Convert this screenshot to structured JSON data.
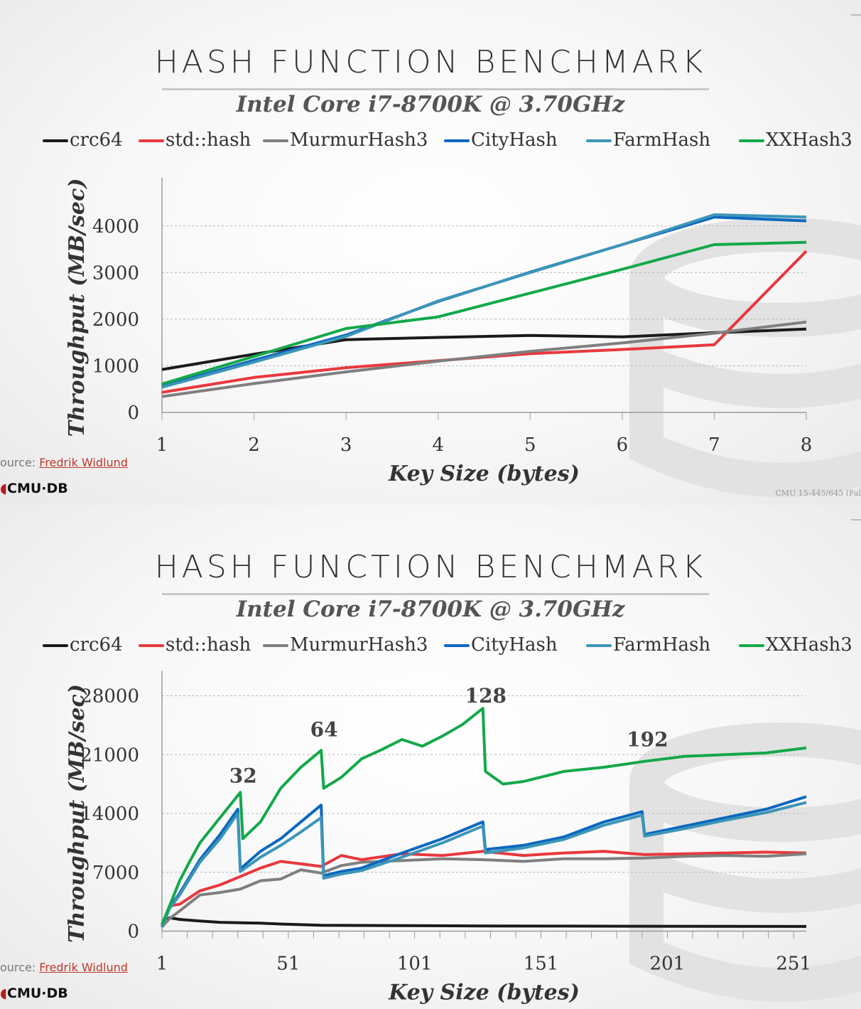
{
  "slides": [
    {
      "title": "HASH FUNCTION BENCHMARK",
      "subtitle": "Intel Core i7-8700K @ 3.70GHz",
      "source_label": "ource:",
      "source_link": "Fredrik Widlund",
      "logo": "CMU·DB",
      "course": "CMU 15-445/645 (Fal"
    },
    {
      "title": "HASH FUNCTION BENCHMARK",
      "subtitle": "Intel Core i7-8700K @ 3.70GHz",
      "source_label": "ource:",
      "source_link": "Fredrik Widlund",
      "logo": "CMU·DB"
    }
  ],
  "legend": [
    {
      "name": "crc64",
      "color": "#1a1a1a"
    },
    {
      "name": "std::hash",
      "color": "#e8383d"
    },
    {
      "name": "MurmurHash3",
      "color": "#7f7f7f"
    },
    {
      "name": "CityHash",
      "color": "#0b67c0"
    },
    {
      "name": "FarmHash",
      "color": "#3d95b8"
    },
    {
      "name": "XXHash3",
      "color": "#13a84a"
    }
  ],
  "chart_data": [
    {
      "type": "line",
      "title": "HASH FUNCTION BENCHMARK",
      "subtitle": "Intel Core i7-8700K @ 3.70GHz",
      "xlabel": "Key Size (bytes)",
      "ylabel": "Throughput (MB/sec)",
      "x": [
        1,
        2,
        3,
        4,
        5,
        6,
        7,
        8
      ],
      "xlim": [
        1,
        8
      ],
      "ylim": [
        0,
        4500
      ],
      "yticks": [
        0,
        1000,
        2000,
        3000,
        4000
      ],
      "xticks": [
        1,
        2,
        3,
        4,
        5,
        6,
        7,
        8
      ],
      "grid": true,
      "legend_position": "top",
      "series": [
        {
          "name": "crc64",
          "color": "#1a1a1a",
          "values": [
            920,
            1250,
            1560,
            1610,
            1650,
            1620,
            1710,
            1790
          ]
        },
        {
          "name": "std::hash",
          "color": "#e8383d",
          "values": [
            430,
            750,
            960,
            1110,
            1260,
            1350,
            1450,
            3460
          ]
        },
        {
          "name": "MurmurHash3",
          "color": "#7f7f7f",
          "values": [
            340,
            620,
            870,
            1100,
            1310,
            1490,
            1700,
            1940
          ]
        },
        {
          "name": "CityHash",
          "color": "#0b67c0",
          "values": [
            560,
            1120,
            1660,
            2380,
            3010,
            3600,
            4190,
            4110
          ]
        },
        {
          "name": "FarmHash",
          "color": "#3d95b8",
          "values": [
            540,
            1080,
            1630,
            2390,
            3000,
            3600,
            4240,
            4190
          ]
        },
        {
          "name": "XXHash3",
          "color": "#13a84a",
          "values": [
            610,
            1200,
            1800,
            2050,
            2560,
            3070,
            3600,
            3650
          ]
        }
      ]
    },
    {
      "type": "line",
      "title": "HASH FUNCTION BENCHMARK",
      "subtitle": "Intel Core i7-8700K @ 3.70GHz",
      "xlabel": "Key Size (bytes)",
      "ylabel": "Throughput (MB/sec)",
      "xlim": [
        1,
        256
      ],
      "ylim": [
        0,
        28000
      ],
      "yticks": [
        0,
        7000,
        14000,
        21000,
        28000
      ],
      "xticks": [
        1,
        51,
        101,
        151,
        201,
        251
      ],
      "grid": true,
      "legend_position": "top",
      "annotations": [
        {
          "text": "32",
          "x": 32,
          "y": 17000
        },
        {
          "text": "64",
          "x": 64,
          "y": 22500
        },
        {
          "text": "128",
          "x": 128,
          "y": 26500
        },
        {
          "text": "192",
          "x": 192,
          "y": 21300
        }
      ],
      "series": [
        {
          "name": "crc64",
          "color": "#1a1a1a",
          "x": [
            1,
            4,
            8,
            16,
            24,
            32,
            40,
            48,
            64,
            96,
            128,
            160,
            192,
            224,
            256
          ],
          "values": [
            800,
            1600,
            1400,
            1200,
            1050,
            1000,
            950,
            850,
            700,
            650,
            620,
            600,
            580,
            570,
            560
          ]
        },
        {
          "name": "std::hash",
          "color": "#e8383d",
          "x": [
            1,
            4,
            8,
            16,
            24,
            32,
            40,
            48,
            56,
            64,
            72,
            80,
            96,
            112,
            128,
            144,
            160,
            176,
            192,
            208,
            224,
            240,
            256
          ],
          "values": [
            600,
            3000,
            3200,
            4800,
            5500,
            6500,
            7500,
            8300,
            8000,
            7700,
            9000,
            8500,
            9200,
            9000,
            9500,
            9000,
            9300,
            9500,
            9100,
            9200,
            9300,
            9400,
            9300
          ]
        },
        {
          "name": "MurmurHash3",
          "color": "#7f7f7f",
          "x": [
            1,
            4,
            8,
            16,
            24,
            32,
            40,
            48,
            56,
            64,
            72,
            80,
            96,
            112,
            128,
            144,
            160,
            176,
            192,
            208,
            224,
            240,
            256
          ],
          "values": [
            500,
            1500,
            2400,
            4300,
            4600,
            5000,
            6000,
            6200,
            7300,
            6900,
            7800,
            8200,
            8400,
            8600,
            8500,
            8300,
            8600,
            8600,
            8700,
            8900,
            9000,
            8900,
            9200
          ]
        },
        {
          "name": "CityHash",
          "color": "#0b67c0",
          "x": [
            1,
            4,
            8,
            16,
            24,
            31,
            32,
            40,
            48,
            56,
            64,
            65,
            72,
            80,
            96,
            112,
            128,
            129,
            144,
            160,
            176,
            191,
            192,
            208,
            224,
            240,
            256
          ],
          "values": [
            500,
            2800,
            4500,
            8500,
            11500,
            14500,
            7400,
            9500,
            11000,
            13000,
            15000,
            6600,
            7100,
            7500,
            9300,
            11000,
            13000,
            9700,
            10200,
            11200,
            13000,
            14200,
            11500,
            12500,
            13500,
            14500,
            16000
          ]
        },
        {
          "name": "FarmHash",
          "color": "#3d95b8",
          "x": [
            1,
            4,
            8,
            16,
            24,
            31,
            32,
            40,
            48,
            56,
            64,
            65,
            72,
            80,
            96,
            112,
            128,
            129,
            144,
            160,
            176,
            191,
            192,
            208,
            224,
            240,
            256
          ],
          "values": [
            500,
            2700,
            4300,
            8200,
            11000,
            14000,
            7100,
            8800,
            10200,
            11800,
            13500,
            6300,
            6800,
            7200,
            8800,
            10500,
            12500,
            9300,
            9900,
            10900,
            12600,
            13800,
            11300,
            12200,
            13200,
            14100,
            15300
          ]
        },
        {
          "name": "XXHash3",
          "color": "#13a84a",
          "x": [
            1,
            4,
            8,
            12,
            16,
            24,
            32,
            33,
            40,
            48,
            56,
            64,
            65,
            72,
            80,
            88,
            96,
            104,
            112,
            120,
            128,
            129,
            136,
            144,
            160,
            176,
            192,
            208,
            224,
            240,
            256
          ],
          "values": [
            800,
            3000,
            6000,
            8300,
            10500,
            13500,
            16500,
            11000,
            13000,
            17000,
            19500,
            21500,
            17000,
            18300,
            20500,
            21600,
            22800,
            22000,
            23200,
            24600,
            26500,
            19000,
            17500,
            17800,
            19000,
            19500,
            20200,
            20800,
            21000,
            21200,
            21800
          ]
        }
      ]
    }
  ]
}
